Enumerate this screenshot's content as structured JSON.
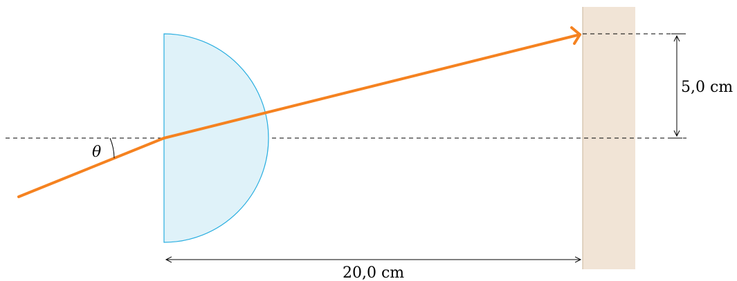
{
  "diagram": {
    "angle_label": "θ",
    "height_label": "5,0 cm",
    "distance_label": "20,0 cm"
  },
  "colors": {
    "lens_fill": "#dff2f9",
    "lens_stroke": "#29aee0",
    "ray": "#f58220",
    "screen_fill": "#f1e4d6",
    "screen_stroke": "#c9b49a",
    "guide": "#000000"
  }
}
